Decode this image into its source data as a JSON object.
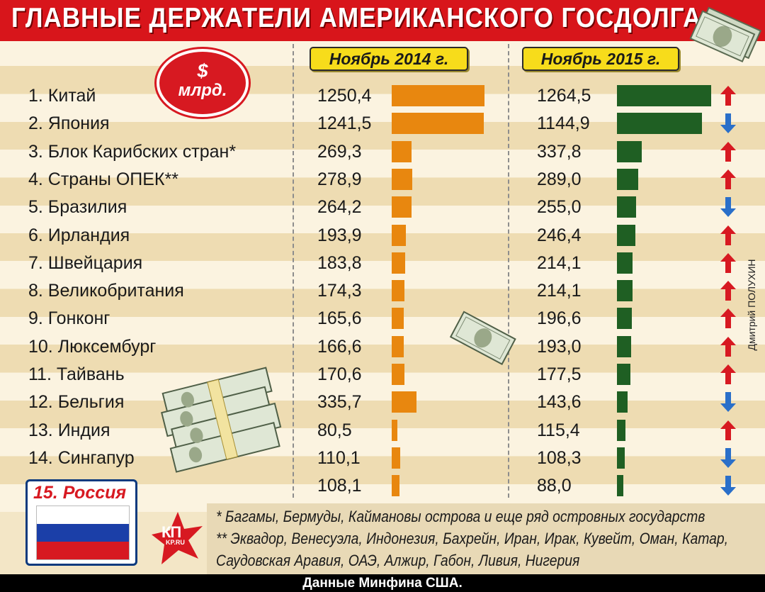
{
  "title": "ГЛАВНЫЕ ДЕРЖАТЕЛИ АМЕРИКАНСКОГО ГОСДОЛГА",
  "unit_badge": {
    "line1": "$",
    "line2": "млрд."
  },
  "colors": {
    "bar_2014": "#e8870f",
    "bar_2015": "#1f5f23",
    "arrow_up": "#d71921",
    "arrow_down": "#2a6fc9",
    "title_bg": "#d8151b"
  },
  "chart_data": {
    "type": "bar",
    "categories": [
      "1. Китай",
      "2. Япония",
      "3. Блок Карибских стран*",
      "4. Страны ОПЕК**",
      "5. Бразилия",
      "6. Ирландия",
      "7. Швейцария",
      "8. Великобритания",
      "9. Гонконг",
      "10. Люксембург",
      "11. Тайвань",
      "12. Бельгия",
      "13. Индия",
      "14. Сингапур",
      "15. Россия"
    ],
    "series": [
      {
        "name": "Ноябрь 2014 г.",
        "values": [
          1250.4,
          1241.5,
          269.3,
          278.9,
          264.2,
          193.9,
          183.8,
          174.3,
          165.6,
          166.6,
          170.6,
          335.7,
          80.5,
          110.1,
          108.1
        ],
        "labels": [
          "1250,4",
          "1241,5",
          "269,3",
          "278,9",
          "264,2",
          "193,9",
          "183,8",
          "174,3",
          "165,6",
          "166,6",
          "170,6",
          "335,7",
          "80,5",
          "110,1",
          "108,1"
        ]
      },
      {
        "name": "Ноябрь 2015 г.",
        "values": [
          1264.5,
          1144.9,
          337.8,
          289.0,
          255.0,
          246.4,
          214.1,
          214.1,
          196.6,
          193.0,
          177.5,
          143.6,
          115.4,
          108.3,
          88.0
        ],
        "labels": [
          "1264,5",
          "1144,9",
          "337,8",
          "289,0",
          "255,0",
          "246,4",
          "214,1",
          "214,1",
          "196,6",
          "193,0",
          "177,5",
          "143,6",
          "115,4",
          "108,3",
          "88,0"
        ]
      }
    ],
    "trend": [
      "up",
      "down",
      "up",
      "up",
      "down",
      "up",
      "up",
      "up",
      "up",
      "up",
      "up",
      "down",
      "up",
      "down",
      "down"
    ],
    "xlabel": "",
    "ylabel": "",
    "orientation": "horizontal",
    "legend": "column-headers",
    "grid": false
  },
  "russia_label": "15. Россия",
  "notes": [
    "* Багамы, Бермуды, Каймановы острова и еще ряд островных государств",
    "** Эквадор, Венесуэла, Индонезия, Бахрейн, Иран, Ирак, Кувейт, Оман, Катар,",
    "Саудовская Аравия, ОАЭ, Алжир, Габон, Ливия, Нигерия"
  ],
  "author": "Дмитрий ПОЛУХИН",
  "logo": {
    "text": "КП",
    "sub": "KP.RU"
  },
  "source": "Данные Минфина США."
}
